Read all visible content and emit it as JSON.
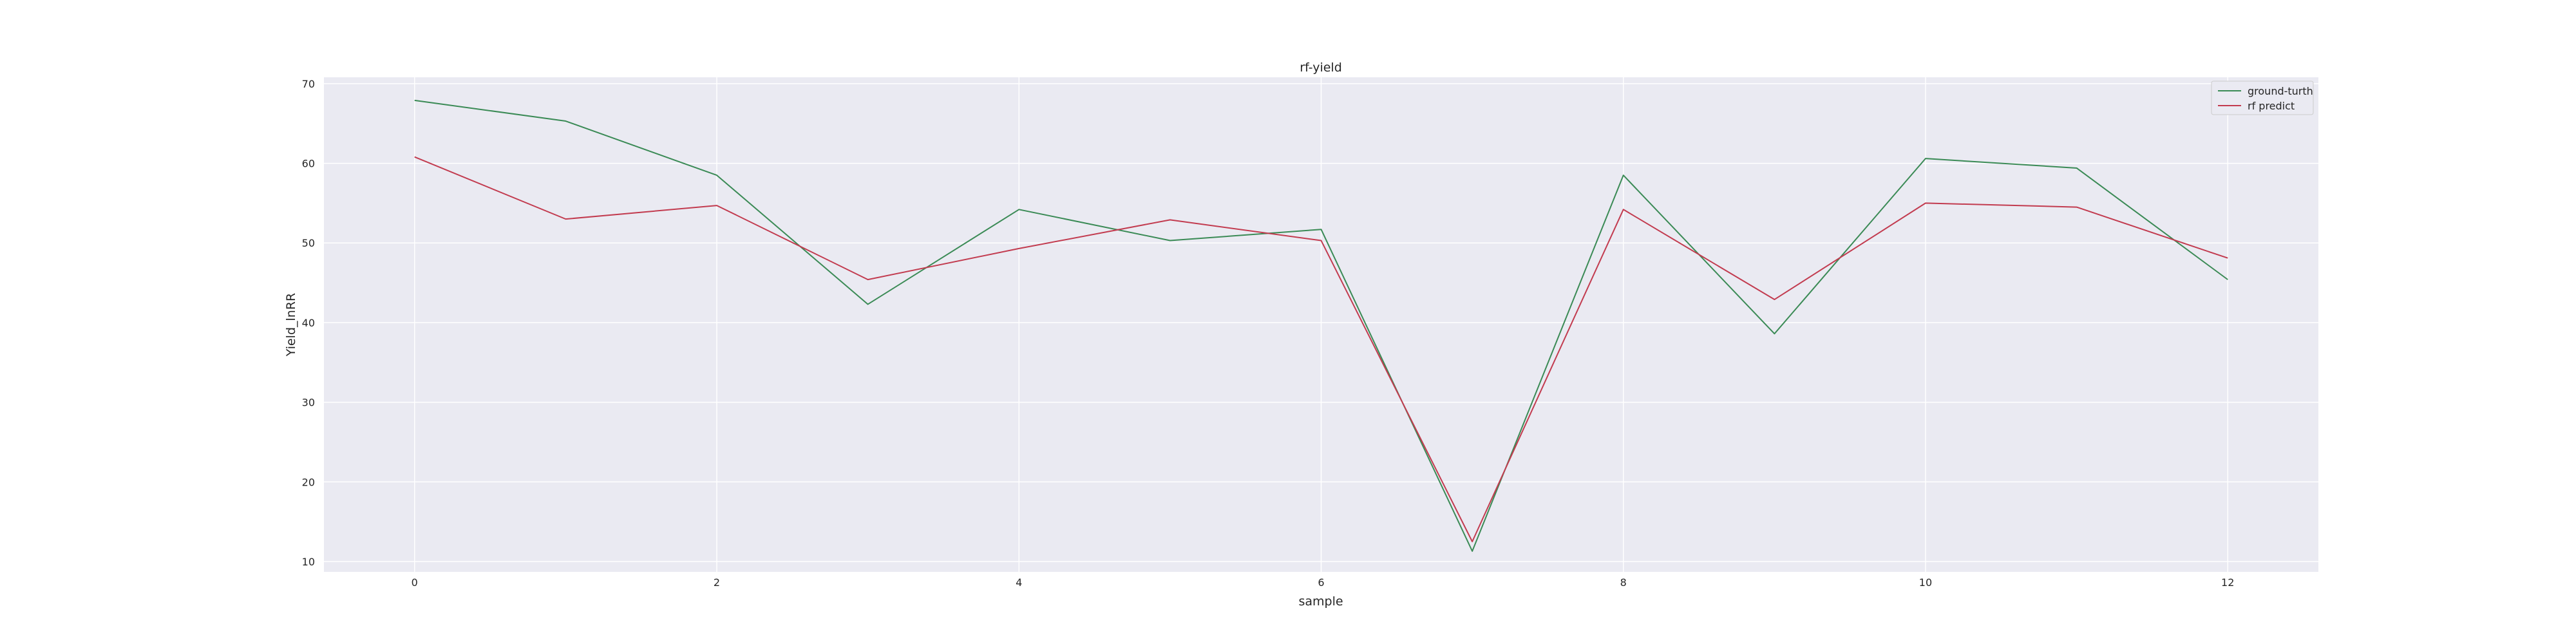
{
  "chart_data": {
    "type": "line",
    "title": "rf-yield",
    "xlabel": "sample",
    "ylabel": "Yield_lnRR",
    "x": [
      0,
      1,
      2,
      3,
      4,
      5,
      6,
      7,
      8,
      9,
      10,
      11,
      12
    ],
    "xlim": [
      -0.6,
      12.6
    ],
    "ylim": [
      8.7,
      70.8
    ],
    "xticks": [
      0,
      2,
      4,
      6,
      8,
      10,
      12
    ],
    "yticks": [
      10,
      20,
      30,
      40,
      50,
      60,
      70
    ],
    "grid": true,
    "legend_position": "top-right",
    "series": [
      {
        "name": "ground-turth",
        "color": "#3a8a55",
        "values": [
          67.9,
          65.3,
          58.5,
          42.3,
          54.2,
          50.3,
          51.7,
          11.3,
          58.5,
          38.6,
          60.6,
          59.4,
          45.4
        ]
      },
      {
        "name": "rf predict",
        "color": "#c23b4f",
        "values": [
          60.8,
          53.0,
          54.7,
          45.4,
          49.3,
          52.9,
          50.3,
          12.5,
          54.2,
          42.9,
          55.0,
          54.5,
          48.1
        ]
      }
    ]
  }
}
